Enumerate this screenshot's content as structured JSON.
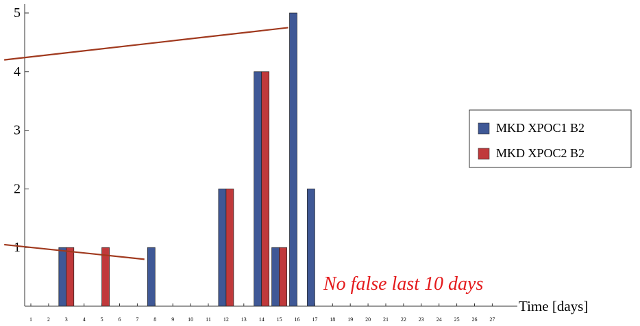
{
  "chart_data": {
    "type": "bar",
    "title": "",
    "xlabel": "Time [days]",
    "ylabel": "",
    "categories": [
      1,
      2,
      3,
      4,
      5,
      6,
      7,
      8,
      9,
      10,
      11,
      12,
      13,
      14,
      15,
      16,
      17,
      18,
      19,
      20,
      21,
      22,
      23,
      24,
      25,
      26,
      27
    ],
    "ylim": [
      0,
      5
    ],
    "yticks": [
      1,
      2,
      3,
      4,
      5
    ],
    "legend_position": "right",
    "series": [
      {
        "name": "MKD XPOC1 B2",
        "color": "#3f5896",
        "values": [
          0,
          0,
          1,
          0,
          0,
          0,
          0,
          1,
          0,
          0,
          0,
          2,
          0,
          4,
          1,
          5,
          2,
          0,
          0,
          0,
          0,
          0,
          0,
          0,
          0,
          0,
          0
        ]
      },
      {
        "name": "MKD XPOC2 B2",
        "color": "#c0393b",
        "values": [
          0,
          0,
          1,
          0,
          1,
          0,
          0,
          0,
          0,
          0,
          0,
          2,
          0,
          4,
          1,
          0,
          0,
          0,
          0,
          0,
          0,
          0,
          0,
          0,
          0,
          0,
          0
        ]
      }
    ],
    "annotations": [
      {
        "text": "No false last 10 days",
        "color": "#e41a1c"
      }
    ],
    "overlay_lines": [
      {
        "color": "#a0391e",
        "from": [
          -0.5,
          4.2
        ],
        "to": [
          15.5,
          4.75
        ]
      },
      {
        "color": "#a0391e",
        "from": [
          -0.5,
          1.05
        ],
        "to": [
          7.4,
          0.8
        ]
      }
    ]
  }
}
